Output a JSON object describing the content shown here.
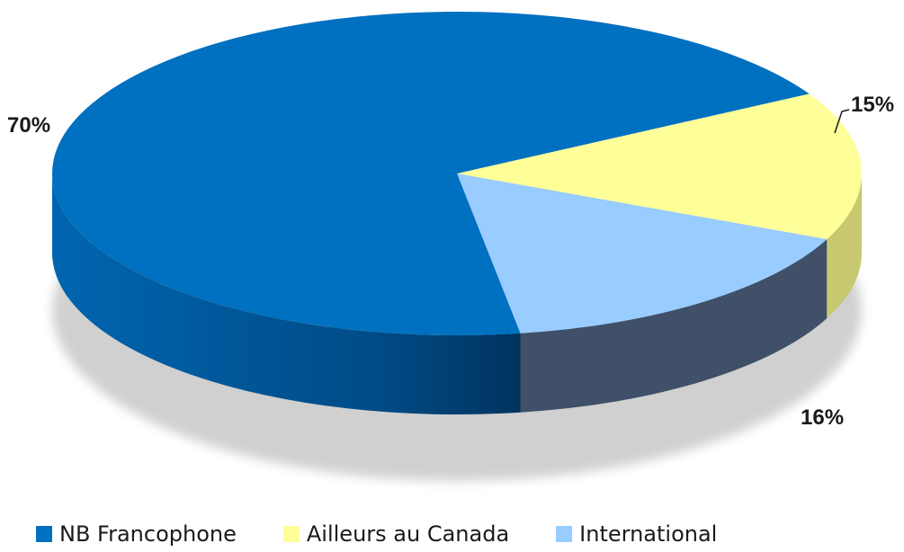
{
  "chart_data": {
    "type": "pie",
    "three_d": true,
    "legend_position": "bottom",
    "labels": [
      "NB Francophone",
      "Ailleurs au Canada",
      "International"
    ],
    "values": [
      70,
      15,
      16
    ],
    "value_labels": [
      "70%",
      "15%",
      "16%"
    ],
    "colors": [
      "#0070C0",
      "#FFFF99",
      "#99CCFF"
    ],
    "side_colors": [
      "#004A85",
      "#C8C870",
      "#3F5068"
    ]
  }
}
